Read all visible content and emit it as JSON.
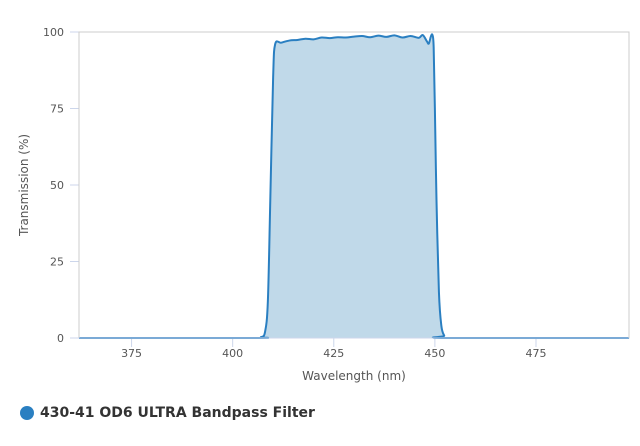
{
  "chart_data": {
    "type": "area",
    "xlabel": "Wavelength (nm)",
    "ylabel": "Transmission (%)",
    "xlim": [
      362,
      498
    ],
    "ylim": [
      0,
      100
    ],
    "xticks": [
      375,
      400,
      425,
      450,
      475
    ],
    "yticks": [
      0,
      25,
      50,
      75,
      100
    ],
    "grid": false,
    "legend_placement": "bottom-left",
    "series": [
      {
        "name": "430-41 OD6 ULTRA Bandpass Filter",
        "color": "#2a7fc1",
        "fill": "#c0d9e9",
        "x": [
          362,
          405,
          407,
          408,
          408.7,
          409.3,
          410,
          410.5,
          412,
          414,
          416,
          418,
          420,
          422,
          424,
          426,
          428,
          430,
          432,
          434,
          436,
          438,
          440,
          442,
          444,
          446,
          447,
          448,
          448.5,
          449,
          449.4,
          449.7,
          450,
          450.4,
          451,
          451.6,
          452.3,
          453,
          498
        ],
        "y": [
          0,
          0,
          0.3,
          2,
          12,
          45,
          85,
          96,
          96.5,
          97.2,
          97.4,
          97.8,
          97.6,
          98.2,
          98,
          98.3,
          98.2,
          98.5,
          98.7,
          98.3,
          98.8,
          98.4,
          98.9,
          98.2,
          98.7,
          98.1,
          99,
          97,
          96.2,
          98.5,
          99,
          95,
          75,
          45,
          15,
          4,
          0.8,
          0,
          0
        ]
      }
    ]
  }
}
